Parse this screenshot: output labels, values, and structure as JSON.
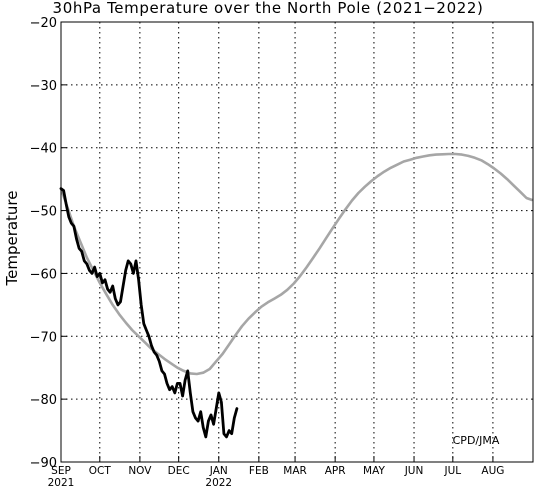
{
  "chart_data": {
    "type": "line",
    "title": "30hPa Temperature over the North Pole (2021−2022)",
    "ylabel": "Temperature",
    "xlabel": "",
    "credit": "CPD/JMA",
    "ylim": [
      -90,
      -20
    ],
    "y_ticks": [
      -90,
      -80,
      -70,
      -60,
      -50,
      -40,
      -30,
      -20
    ],
    "y_tick_labels": [
      "−90",
      "−80",
      "−70",
      "−60",
      "−50",
      "−40",
      "−30",
      "−20"
    ],
    "xlim": [
      "2021-09-01",
      "2022-08-31"
    ],
    "x_ticks": [
      {
        "date": "2021-09-01",
        "label": "SEP",
        "sublabel": "2021"
      },
      {
        "date": "2021-10-01",
        "label": "OCT",
        "sublabel": ""
      },
      {
        "date": "2021-11-01",
        "label": "NOV",
        "sublabel": ""
      },
      {
        "date": "2021-12-01",
        "label": "DEC",
        "sublabel": ""
      },
      {
        "date": "2022-01-01",
        "label": "JAN",
        "sublabel": "2022"
      },
      {
        "date": "2022-02-01",
        "label": "FEB",
        "sublabel": ""
      },
      {
        "date": "2022-03-01",
        "label": "MAR",
        "sublabel": ""
      },
      {
        "date": "2022-04-01",
        "label": "APR",
        "sublabel": ""
      },
      {
        "date": "2022-05-01",
        "label": "MAY",
        "sublabel": ""
      },
      {
        "date": "2022-06-01",
        "label": "JUN",
        "sublabel": ""
      },
      {
        "date": "2022-07-01",
        "label": "JUL",
        "sublabel": ""
      },
      {
        "date": "2022-08-01",
        "label": "AUG",
        "sublabel": ""
      }
    ],
    "grid": true,
    "series": [
      {
        "color": "#a6a6a6",
        "points": [
          [
            "2021-09-01",
            -46.5
          ],
          [
            "2021-09-06",
            -49.5
          ],
          [
            "2021-09-11",
            -52.5
          ],
          [
            "2021-09-16",
            -55.0
          ],
          [
            "2021-09-21",
            -57.5
          ],
          [
            "2021-09-26",
            -59.5
          ],
          [
            "2021-10-01",
            -61.5
          ],
          [
            "2021-10-06",
            -63.3
          ],
          [
            "2021-10-11",
            -65.0
          ],
          [
            "2021-10-16",
            -66.5
          ],
          [
            "2021-10-21",
            -67.8
          ],
          [
            "2021-10-26",
            -69.0
          ],
          [
            "2021-10-31",
            -70.0
          ],
          [
            "2021-11-05",
            -71.0
          ],
          [
            "2021-11-10",
            -72.0
          ],
          [
            "2021-11-15",
            -72.8
          ],
          [
            "2021-11-20",
            -73.6
          ],
          [
            "2021-11-25",
            -74.3
          ],
          [
            "2021-11-30",
            -75.0
          ],
          [
            "2021-12-05",
            -75.5
          ],
          [
            "2021-12-10",
            -75.9
          ],
          [
            "2021-12-15",
            -76.0
          ],
          [
            "2021-12-20",
            -75.8
          ],
          [
            "2021-12-25",
            -75.2
          ],
          [
            "2021-12-30",
            -74.0
          ],
          [
            "2022-01-04",
            -72.8
          ],
          [
            "2022-01-09",
            -71.3
          ],
          [
            "2022-01-14",
            -69.8
          ],
          [
            "2022-01-19",
            -68.4
          ],
          [
            "2022-01-24",
            -67.2
          ],
          [
            "2022-01-29",
            -66.2
          ],
          [
            "2022-02-03",
            -65.3
          ],
          [
            "2022-02-08",
            -64.6
          ],
          [
            "2022-02-13",
            -64.0
          ],
          [
            "2022-02-18",
            -63.4
          ],
          [
            "2022-02-23",
            -62.6
          ],
          [
            "2022-02-28",
            -61.6
          ],
          [
            "2022-03-05",
            -60.4
          ],
          [
            "2022-03-10",
            -59.0
          ],
          [
            "2022-03-15",
            -57.5
          ],
          [
            "2022-03-20",
            -56.0
          ],
          [
            "2022-03-25",
            -54.4
          ],
          [
            "2022-03-30",
            -52.8
          ],
          [
            "2022-04-04",
            -51.3
          ],
          [
            "2022-04-09",
            -49.8
          ],
          [
            "2022-04-14",
            -48.4
          ],
          [
            "2022-04-19",
            -47.2
          ],
          [
            "2022-04-24",
            -46.2
          ],
          [
            "2022-04-29",
            -45.3
          ],
          [
            "2022-05-04",
            -44.5
          ],
          [
            "2022-05-09",
            -43.8
          ],
          [
            "2022-05-14",
            -43.2
          ],
          [
            "2022-05-19",
            -42.7
          ],
          [
            "2022-05-24",
            -42.2
          ],
          [
            "2022-05-29",
            -41.9
          ],
          [
            "2022-06-03",
            -41.6
          ],
          [
            "2022-06-08",
            -41.4
          ],
          [
            "2022-06-13",
            -41.2
          ],
          [
            "2022-06-18",
            -41.1
          ],
          [
            "2022-06-23",
            -41.05
          ],
          [
            "2022-06-28",
            -41.0
          ],
          [
            "2022-07-03",
            -41.0
          ],
          [
            "2022-07-08",
            -41.1
          ],
          [
            "2022-07-13",
            -41.3
          ],
          [
            "2022-07-18",
            -41.6
          ],
          [
            "2022-07-23",
            -42.0
          ],
          [
            "2022-07-28",
            -42.6
          ],
          [
            "2022-08-02",
            -43.3
          ],
          [
            "2022-08-07",
            -44.1
          ],
          [
            "2022-08-12",
            -45.0
          ],
          [
            "2022-08-17",
            -46.0
          ],
          [
            "2022-08-22",
            -47.0
          ],
          [
            "2022-08-27",
            -48.0
          ],
          [
            "2022-08-31",
            -48.3
          ]
        ]
      },
      {
        "color": "#000000",
        "points": [
          [
            "2021-09-01",
            -46.5
          ],
          [
            "2021-09-03",
            -46.8
          ],
          [
            "2021-09-05",
            -49.0
          ],
          [
            "2021-09-07",
            -51.0
          ],
          [
            "2021-09-09",
            -52.0
          ],
          [
            "2021-09-11",
            -52.5
          ],
          [
            "2021-09-13",
            -54.5
          ],
          [
            "2021-09-15",
            -56.0
          ],
          [
            "2021-09-17",
            -56.5
          ],
          [
            "2021-09-19",
            -58.0
          ],
          [
            "2021-09-21",
            -58.5
          ],
          [
            "2021-09-23",
            -59.5
          ],
          [
            "2021-09-25",
            -60.0
          ],
          [
            "2021-09-27",
            -59.0
          ],
          [
            "2021-09-29",
            -60.5
          ],
          [
            "2021-10-01",
            -60.0
          ],
          [
            "2021-10-03",
            -61.5
          ],
          [
            "2021-10-05",
            -61.0
          ],
          [
            "2021-10-07",
            -62.5
          ],
          [
            "2021-10-09",
            -63.0
          ],
          [
            "2021-10-11",
            -62.0
          ],
          [
            "2021-10-13",
            -64.0
          ],
          [
            "2021-10-15",
            -65.0
          ],
          [
            "2021-10-17",
            -64.5
          ],
          [
            "2021-10-19",
            -62.0
          ],
          [
            "2021-10-21",
            -59.5
          ],
          [
            "2021-10-23",
            -58.0
          ],
          [
            "2021-10-25",
            -58.5
          ],
          [
            "2021-10-27",
            -60.0
          ],
          [
            "2021-10-29",
            -58.0
          ],
          [
            "2021-10-31",
            -61.0
          ],
          [
            "2021-11-02",
            -65.0
          ],
          [
            "2021-11-04",
            -68.0
          ],
          [
            "2021-11-06",
            -69.0
          ],
          [
            "2021-11-08",
            -70.0
          ],
          [
            "2021-11-10",
            -71.5
          ],
          [
            "2021-11-12",
            -72.5
          ],
          [
            "2021-11-14",
            -73.0
          ],
          [
            "2021-11-16",
            -74.0
          ],
          [
            "2021-11-18",
            -75.5
          ],
          [
            "2021-11-20",
            -76.0
          ],
          [
            "2021-11-22",
            -77.5
          ],
          [
            "2021-11-24",
            -78.5
          ],
          [
            "2021-11-26",
            -78.0
          ],
          [
            "2021-11-28",
            -79.0
          ],
          [
            "2021-11-30",
            -77.5
          ],
          [
            "2021-12-02",
            -77.5
          ],
          [
            "2021-12-04",
            -79.5
          ],
          [
            "2021-12-06",
            -77.0
          ],
          [
            "2021-12-08",
            -75.5
          ],
          [
            "2021-12-10",
            -79.0
          ],
          [
            "2021-12-12",
            -82.0
          ],
          [
            "2021-12-14",
            -83.0
          ],
          [
            "2021-12-16",
            -83.5
          ],
          [
            "2021-12-18",
            -82.0
          ],
          [
            "2021-12-20",
            -84.5
          ],
          [
            "2021-12-22",
            -86.0
          ],
          [
            "2021-12-24",
            -83.5
          ],
          [
            "2021-12-26",
            -82.5
          ],
          [
            "2021-12-28",
            -84.0
          ],
          [
            "2021-12-30",
            -81.5
          ],
          [
            "2022-01-01",
            -79.0
          ],
          [
            "2022-01-03",
            -80.5
          ],
          [
            "2022-01-05",
            -85.5
          ],
          [
            "2022-01-07",
            -86.0
          ],
          [
            "2022-01-09",
            -85.0
          ],
          [
            "2022-01-11",
            -85.5
          ],
          [
            "2022-01-13",
            -83.0
          ],
          [
            "2022-01-15",
            -81.5
          ]
        ]
      }
    ]
  }
}
